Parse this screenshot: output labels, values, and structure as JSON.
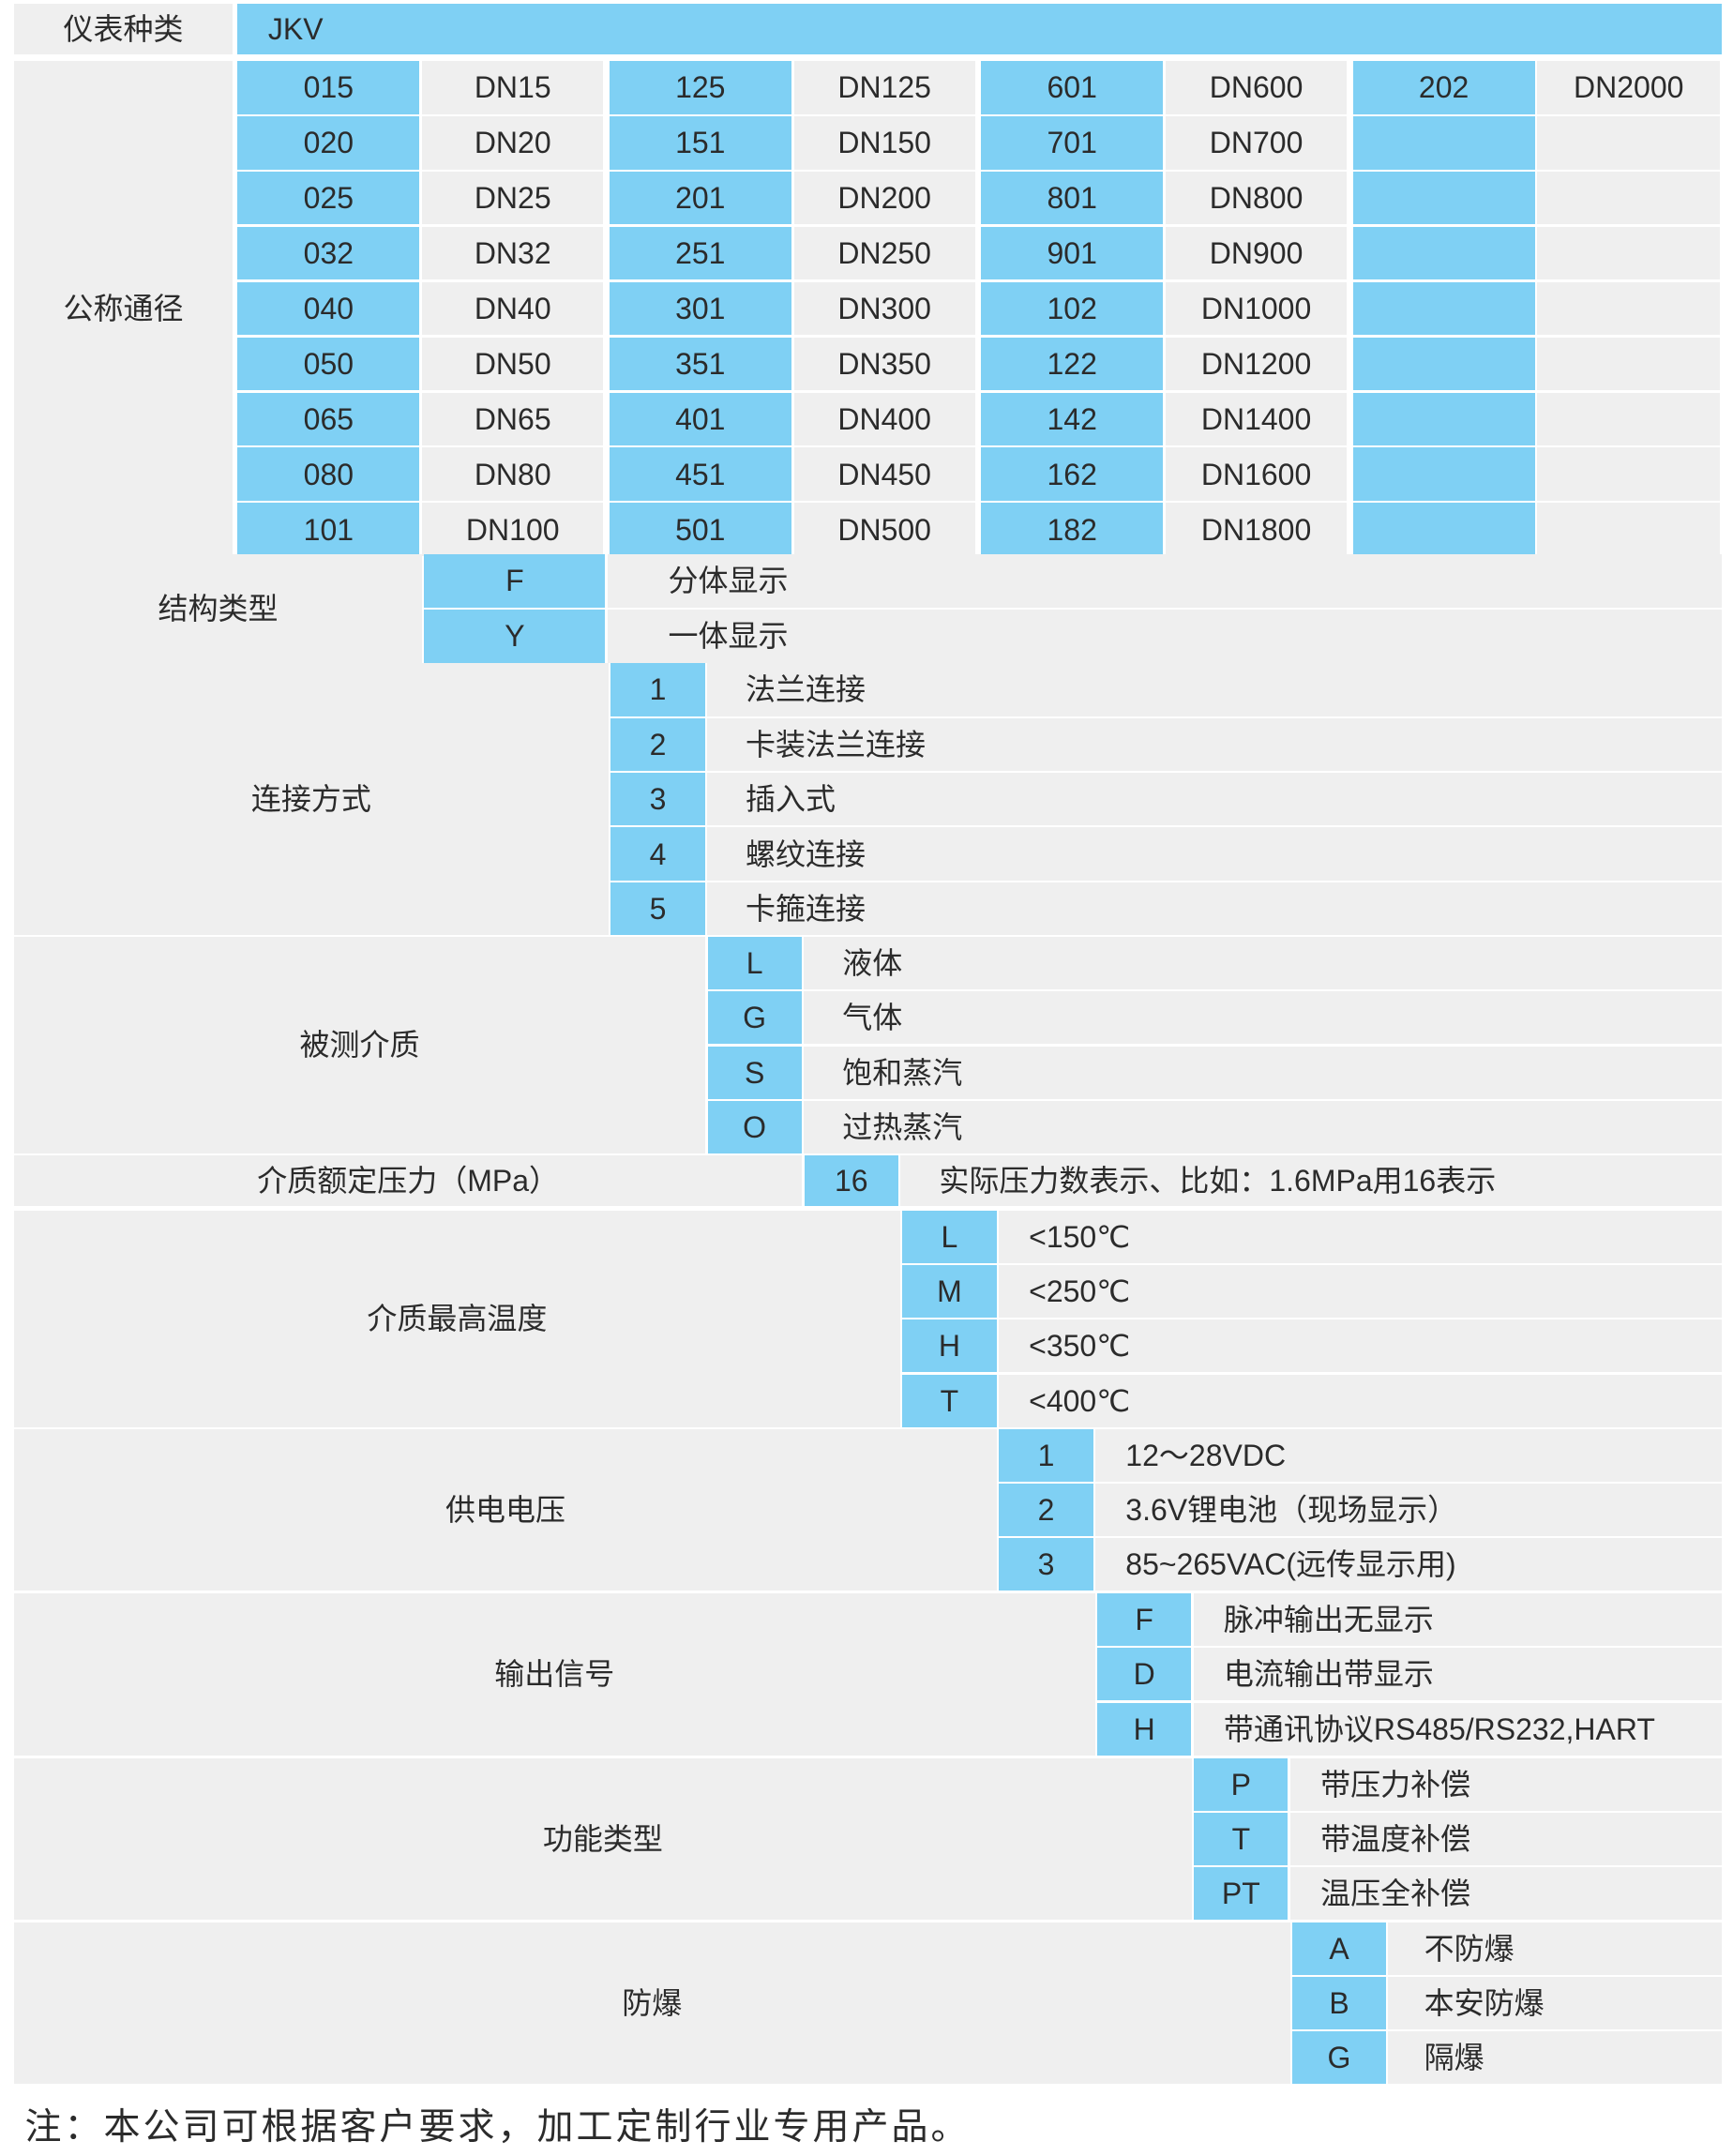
{
  "instrument_type": {
    "label": "仪表种类",
    "value": "JKV"
  },
  "nominal_diameter": {
    "label": "公称通径",
    "columns": [
      {
        "codes": [
          "015",
          "020",
          "025",
          "032",
          "040",
          "050",
          "065",
          "080",
          "101"
        ],
        "sizes": [
          "DN15",
          "DN20",
          "DN25",
          "DN32",
          "DN40",
          "DN50",
          "DN65",
          "DN80",
          "DN100"
        ]
      },
      {
        "codes": [
          "125",
          "151",
          "201",
          "251",
          "301",
          "351",
          "401",
          "451",
          "501"
        ],
        "sizes": [
          "DN125",
          "DN150",
          "DN200",
          "DN250",
          "DN300",
          "DN350",
          "DN400",
          "DN450",
          "DN500"
        ]
      },
      {
        "codes": [
          "601",
          "701",
          "801",
          "901",
          "102",
          "122",
          "142",
          "162",
          "182"
        ],
        "sizes": [
          "DN600",
          "DN700",
          "DN800",
          "DN900",
          "DN1000",
          "DN1200",
          "DN1400",
          "DN1600",
          "DN1800"
        ]
      },
      {
        "codes": [
          "202",
          "",
          "",
          "",
          "",
          "",
          "",
          "",
          ""
        ],
        "sizes": [
          "DN2000",
          "",
          "",
          "",
          "",
          "",
          "",
          "",
          ""
        ]
      }
    ]
  },
  "sections": [
    {
      "label": "结构类型",
      "options": [
        {
          "code": "F",
          "desc": "分体显示"
        },
        {
          "code": "Y",
          "desc": "一体显示"
        }
      ]
    },
    {
      "label": "连接方式",
      "options": [
        {
          "code": "1",
          "desc": "法兰连接"
        },
        {
          "code": "2",
          "desc": "卡装法兰连接"
        },
        {
          "code": "3",
          "desc": "插入式"
        },
        {
          "code": "4",
          "desc": "螺纹连接"
        },
        {
          "code": "5",
          "desc": "卡箍连接"
        }
      ]
    },
    {
      "label": "被测介质",
      "options": [
        {
          "code": "L",
          "desc": "液体"
        },
        {
          "code": "G",
          "desc": "气体"
        },
        {
          "code": "S",
          "desc": "饱和蒸汽"
        },
        {
          "code": "O",
          "desc": "过热蒸汽"
        }
      ]
    },
    {
      "label": "介质额定压力（MPa）",
      "options": [
        {
          "code": "16",
          "desc": "实际压力数表示、比如：1.6MPa用16表示"
        }
      ]
    },
    {
      "label": "介质最高温度",
      "options": [
        {
          "code": "L",
          "desc": "<150℃"
        },
        {
          "code": "M",
          "desc": "<250℃"
        },
        {
          "code": "H",
          "desc": "<350℃"
        },
        {
          "code": "T",
          "desc": "<400℃"
        }
      ]
    },
    {
      "label": "供电电压",
      "options": [
        {
          "code": "1",
          "desc": "12～28VDC"
        },
        {
          "code": "2",
          "desc": "3.6V锂电池（现场显示）"
        },
        {
          "code": "3",
          "desc": "85~265VAC(远传显示用)"
        }
      ]
    },
    {
      "label": "输出信号",
      "options": [
        {
          "code": "F",
          "desc": "脉冲输出无显示"
        },
        {
          "code": "D",
          "desc": "电流输出带显示"
        },
        {
          "code": "H",
          "desc": "带通讯协议RS485/RS232,HART"
        }
      ]
    },
    {
      "label": "功能类型",
      "options": [
        {
          "code": "P",
          "desc": "带压力补偿"
        },
        {
          "code": "T",
          "desc": "带温度补偿"
        },
        {
          "code": "PT",
          "desc": "温压全补偿"
        }
      ]
    },
    {
      "label": "防爆",
      "options": [
        {
          "code": "A",
          "desc": "不防爆"
        },
        {
          "code": "B",
          "desc": "本安防爆"
        },
        {
          "code": "G",
          "desc": "隔爆"
        }
      ]
    }
  ],
  "note": "注：本公司可根据客户要求，加工定制行业专用产品。",
  "colors": {
    "code_fill": "#7fd0f4",
    "row_fill": "#efefef",
    "text": "#2b2b2b",
    "background": "#ffffff"
  }
}
